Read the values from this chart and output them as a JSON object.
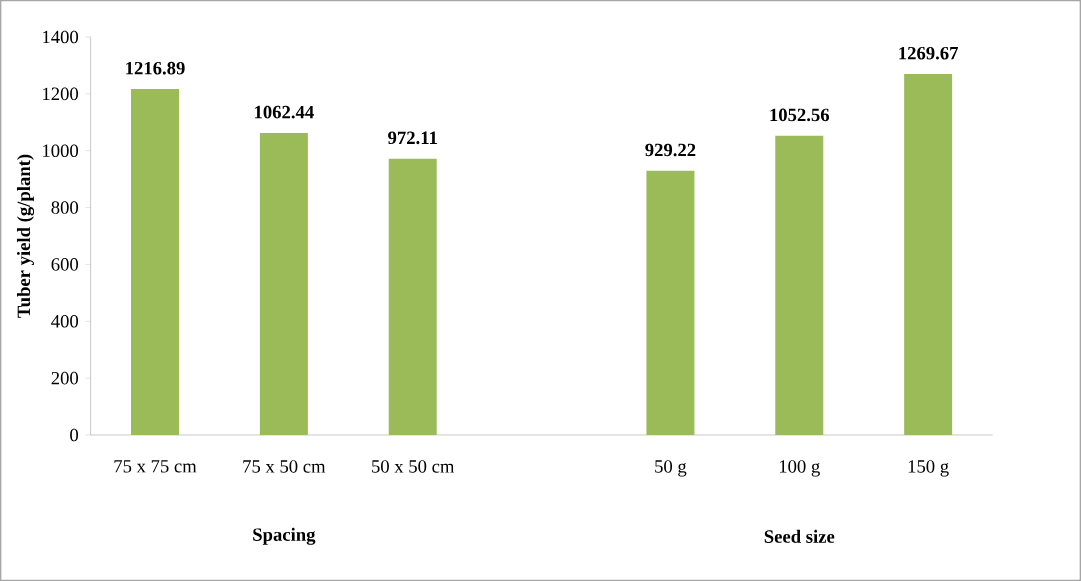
{
  "chart_data": {
    "type": "bar",
    "ylabel": "Tuber yield (g/plant)",
    "categories": [
      "75 x 75 cm",
      "75 x 50 cm",
      "50 x 50 cm",
      null,
      "50 g",
      "100 g",
      "150 g"
    ],
    "values": [
      1216.89,
      1062.44,
      972.11,
      null,
      929.22,
      1052.56,
      1269.67
    ],
    "color": "#9bbb59",
    "ylim": [
      0,
      1400
    ],
    "yticks": [
      0,
      200,
      400,
      600,
      800,
      1000,
      1200,
      1400
    ],
    "data_labels": true,
    "annotations": [
      "Spacing",
      "Seed size"
    ]
  }
}
